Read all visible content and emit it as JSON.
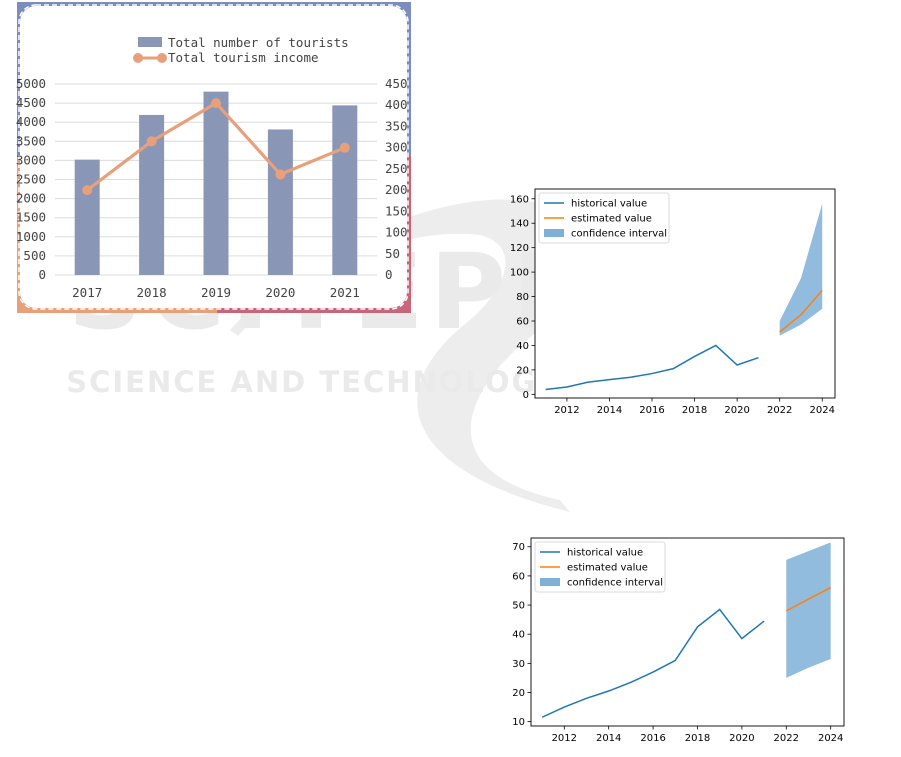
{
  "watermark": {
    "main": "SCITEPRESS",
    "sub": "SCIENCE AND TECHNOLOGY PUBLICATIONS"
  },
  "chart_data": [
    {
      "type": "bar",
      "categories": [
        "2017",
        "2018",
        "2019",
        "2020",
        "2021"
      ],
      "series": [
        {
          "name": "Total number of tourists",
          "type": "bar",
          "axis": "left",
          "color": "#8a96b6",
          "values": [
            3020,
            4190,
            4800,
            3810,
            4440
          ]
        },
        {
          "name": "Total tourism income",
          "type": "line",
          "axis": "right",
          "color": "#e8a07a",
          "values": [
            200,
            315,
            405,
            237,
            300
          ]
        }
      ],
      "ylim": [
        0,
        5000
      ],
      "yticks": [
        0,
        500,
        1000,
        1500,
        2000,
        2500,
        3000,
        3500,
        4000,
        4500,
        5000
      ],
      "y2lim": [
        0,
        450
      ],
      "y2ticks": [
        0,
        50,
        100,
        150,
        200,
        250,
        300,
        350,
        400,
        450
      ],
      "grid": true,
      "legend": "top",
      "frame_colors": [
        "#7b8cbf",
        "#e8a07a",
        "#c9657a"
      ]
    },
    {
      "type": "line",
      "series": [
        {
          "name": "historical value",
          "color": "#1f77b4",
          "x": [
            2011,
            2012,
            2013,
            2014,
            2015,
            2016,
            2017,
            2018,
            2019,
            2020,
            2021
          ],
          "y": [
            4,
            6,
            10,
            12,
            14,
            17,
            21,
            31,
            40,
            24,
            30
          ]
        },
        {
          "name": "estimated value",
          "color": "#ff7f0e",
          "x": [
            2022,
            2023,
            2024
          ],
          "y": [
            51,
            65,
            85
          ]
        },
        {
          "name": "confidence interval",
          "type": "area",
          "color": "#7fb0d8",
          "x": [
            2022,
            2023,
            2024
          ],
          "lower": [
            48,
            57,
            70
          ],
          "upper": [
            60,
            95,
            156
          ]
        }
      ],
      "xticks": [
        "2012",
        "2014",
        "2016",
        "2018",
        "2020",
        "2022",
        "2024"
      ],
      "xlim": [
        2010.5,
        2024.6
      ],
      "ylim": [
        -3,
        168
      ],
      "yticks": [
        "0",
        "20",
        "40",
        "60",
        "80",
        "100",
        "120",
        "140",
        "160"
      ],
      "legend": "top-left"
    },
    {
      "type": "line",
      "series": [
        {
          "name": "historical value",
          "color": "#1f77b4",
          "x": [
            2011,
            2012,
            2013,
            2014,
            2015,
            2016,
            2017,
            2018,
            2019,
            2020,
            2021
          ],
          "y": [
            11.5,
            15,
            18,
            20.5,
            23.5,
            27,
            31,
            42.5,
            48.5,
            38.5,
            44.5
          ]
        },
        {
          "name": "estimated value",
          "color": "#ff7f0e",
          "x": [
            2022,
            2023,
            2024
          ],
          "y": [
            48,
            52,
            56
          ]
        },
        {
          "name": "confidence interval",
          "type": "area",
          "color": "#7fb0d8",
          "x": [
            2022,
            2023,
            2024
          ],
          "lower": [
            25,
            28.5,
            31.5
          ],
          "upper": [
            65.5,
            68.5,
            71.5
          ]
        }
      ],
      "xticks": [
        "2012",
        "2014",
        "2016",
        "2018",
        "2020",
        "2022",
        "2024"
      ],
      "xlim": [
        2010.5,
        2024.6
      ],
      "ylim": [
        8.5,
        73
      ],
      "yticks": [
        "10",
        "20",
        "30",
        "40",
        "50",
        "60",
        "70"
      ],
      "legend": "top-left"
    }
  ]
}
